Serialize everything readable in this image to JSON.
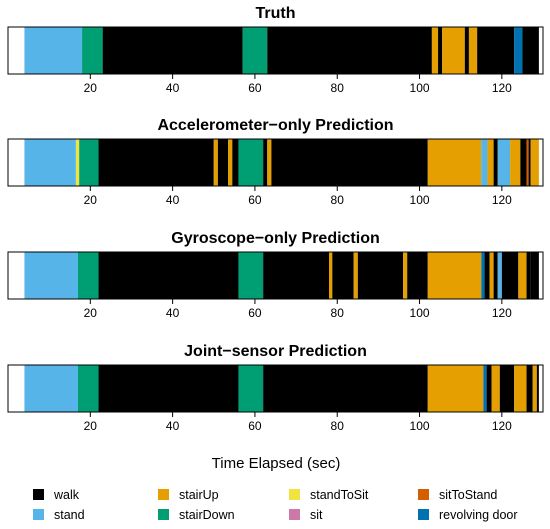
{
  "chart_data": {
    "type": "timeline",
    "xlabel": "Time Elapsed (sec)",
    "xlim": [
      0,
      130
    ],
    "xticks": [
      20,
      40,
      60,
      80,
      100,
      120
    ],
    "classes": [
      {
        "key": "walk",
        "label": "walk",
        "color": "#000000"
      },
      {
        "key": "stand",
        "label": "stand",
        "color": "#56B4E9"
      },
      {
        "key": "stairUp",
        "label": "stairUp",
        "color": "#E69F00"
      },
      {
        "key": "stairDown",
        "label": "stairDown",
        "color": "#009E73"
      },
      {
        "key": "standToSit",
        "label": "standToSit",
        "color": "#F0E442"
      },
      {
        "key": "sit",
        "label": "sit",
        "color": "#CC79A7"
      },
      {
        "key": "sitToStand",
        "label": "sitToStand",
        "color": "#D55E00"
      },
      {
        "key": "revolvingDoor",
        "label": "revolving door",
        "color": "#0072B2"
      }
    ],
    "panels": [
      {
        "title": "Truth",
        "segments": [
          {
            "start": 4,
            "end": 18,
            "activity": "stand"
          },
          {
            "start": 18,
            "end": 23,
            "activity": "stairDown"
          },
          {
            "start": 23,
            "end": 57,
            "activity": "walk"
          },
          {
            "start": 57,
            "end": 63,
            "activity": "stairDown"
          },
          {
            "start": 63,
            "end": 103,
            "activity": "walk"
          },
          {
            "start": 103,
            "end": 104.5,
            "activity": "stairUp"
          },
          {
            "start": 104.5,
            "end": 105.5,
            "activity": "walk"
          },
          {
            "start": 105.5,
            "end": 111,
            "activity": "stairUp"
          },
          {
            "start": 111,
            "end": 112,
            "activity": "walk"
          },
          {
            "start": 112,
            "end": 114,
            "activity": "stairUp"
          },
          {
            "start": 114,
            "end": 123,
            "activity": "walk"
          },
          {
            "start": 123,
            "end": 125,
            "activity": "revolvingDoor"
          },
          {
            "start": 125,
            "end": 129,
            "activity": "walk"
          }
        ]
      },
      {
        "title": "Accelerometer−only Prediction",
        "segments": [
          {
            "start": 4,
            "end": 16.5,
            "activity": "stand"
          },
          {
            "start": 16.5,
            "end": 17.3,
            "activity": "standToSit"
          },
          {
            "start": 17.3,
            "end": 22,
            "activity": "stairDown"
          },
          {
            "start": 22,
            "end": 50,
            "activity": "walk"
          },
          {
            "start": 50,
            "end": 51,
            "activity": "stairUp"
          },
          {
            "start": 51,
            "end": 53.5,
            "activity": "walk"
          },
          {
            "start": 53.5,
            "end": 54.5,
            "activity": "stairUp"
          },
          {
            "start": 54.5,
            "end": 56,
            "activity": "walk"
          },
          {
            "start": 56,
            "end": 62,
            "activity": "stairDown"
          },
          {
            "start": 62,
            "end": 63,
            "activity": "walk"
          },
          {
            "start": 63,
            "end": 64,
            "activity": "stairUp"
          },
          {
            "start": 64,
            "end": 102,
            "activity": "walk"
          },
          {
            "start": 102,
            "end": 115,
            "activity": "stairUp"
          },
          {
            "start": 115,
            "end": 116.5,
            "activity": "stand"
          },
          {
            "start": 116.5,
            "end": 118,
            "activity": "stairUp"
          },
          {
            "start": 118,
            "end": 119,
            "activity": "walk"
          },
          {
            "start": 119,
            "end": 122,
            "activity": "stand"
          },
          {
            "start": 122,
            "end": 124.5,
            "activity": "stairUp"
          },
          {
            "start": 124.5,
            "end": 126,
            "activity": "walk"
          },
          {
            "start": 126,
            "end": 126.5,
            "activity": "sitToStand"
          },
          {
            "start": 126.5,
            "end": 127,
            "activity": "walk"
          },
          {
            "start": 127,
            "end": 129,
            "activity": "stairUp"
          }
        ]
      },
      {
        "title": "Gyroscope−only Prediction",
        "segments": [
          {
            "start": 4,
            "end": 17,
            "activity": "stand"
          },
          {
            "start": 17,
            "end": 22,
            "activity": "stairDown"
          },
          {
            "start": 22,
            "end": 56,
            "activity": "walk"
          },
          {
            "start": 56,
            "end": 62,
            "activity": "stairDown"
          },
          {
            "start": 62,
            "end": 78,
            "activity": "walk"
          },
          {
            "start": 78,
            "end": 78.8,
            "activity": "stairUp"
          },
          {
            "start": 78.8,
            "end": 84,
            "activity": "walk"
          },
          {
            "start": 84,
            "end": 85,
            "activity": "stairUp"
          },
          {
            "start": 85,
            "end": 96,
            "activity": "walk"
          },
          {
            "start": 96,
            "end": 97,
            "activity": "stairUp"
          },
          {
            "start": 97,
            "end": 102,
            "activity": "walk"
          },
          {
            "start": 102,
            "end": 115,
            "activity": "stairUp"
          },
          {
            "start": 115,
            "end": 115.8,
            "activity": "revolvingDoor"
          },
          {
            "start": 115.8,
            "end": 117,
            "activity": "walk"
          },
          {
            "start": 117,
            "end": 118,
            "activity": "stairUp"
          },
          {
            "start": 118,
            "end": 119,
            "activity": "walk"
          },
          {
            "start": 119,
            "end": 120,
            "activity": "stand"
          },
          {
            "start": 120,
            "end": 124,
            "activity": "walk"
          },
          {
            "start": 124,
            "end": 126,
            "activity": "stairUp"
          },
          {
            "start": 126,
            "end": 127,
            "activity": "walk"
          },
          {
            "start": 127,
            "end": 129,
            "activity": "walk"
          }
        ]
      },
      {
        "title": "Joint−sensor Prediction",
        "segments": [
          {
            "start": 4,
            "end": 17,
            "activity": "stand"
          },
          {
            "start": 17,
            "end": 22,
            "activity": "stairDown"
          },
          {
            "start": 22,
            "end": 56,
            "activity": "walk"
          },
          {
            "start": 56,
            "end": 62,
            "activity": "stairDown"
          },
          {
            "start": 62,
            "end": 102,
            "activity": "walk"
          },
          {
            "start": 102,
            "end": 115.5,
            "activity": "stairUp"
          },
          {
            "start": 115.5,
            "end": 116.3,
            "activity": "revolvingDoor"
          },
          {
            "start": 116.3,
            "end": 117.5,
            "activity": "walk"
          },
          {
            "start": 117.5,
            "end": 119.5,
            "activity": "stairUp"
          },
          {
            "start": 119.5,
            "end": 123,
            "activity": "walk"
          },
          {
            "start": 123,
            "end": 126,
            "activity": "stairUp"
          },
          {
            "start": 126,
            "end": 127.5,
            "activity": "walk"
          },
          {
            "start": 127.5,
            "end": 128.5,
            "activity": "stairUp"
          },
          {
            "start": 128.5,
            "end": 129,
            "activity": "walk"
          }
        ]
      }
    ],
    "legend_position": "bottom"
  }
}
